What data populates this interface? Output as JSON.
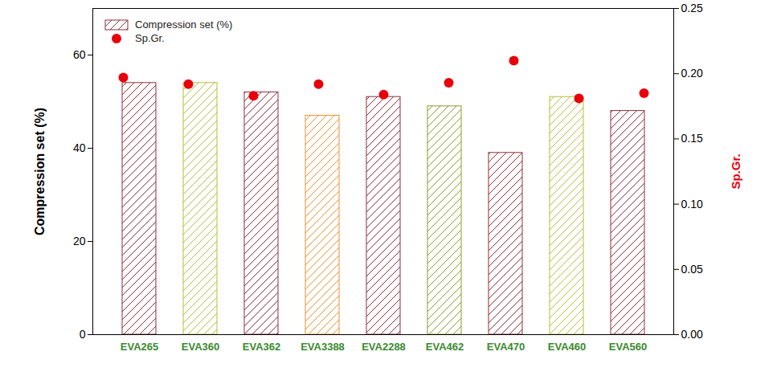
{
  "chart_data": {
    "type": "bar",
    "categories": [
      "EVA265",
      "EVA360",
      "EVA362",
      "EVA3388",
      "EVA2288",
      "EVA462",
      "EVA470",
      "EVA460",
      "EVA560"
    ],
    "series": [
      {
        "name": "Compression set (%)",
        "type": "bar",
        "colors": [
          "#8b2e3a",
          "#b5bd3a",
          "#8b2e3a",
          "#e8922e",
          "#8b2e3a",
          "#8c9a2e",
          "#8b2e3a",
          "#b5bd3a",
          "#8b2e3a"
        ],
        "values": [
          54,
          54,
          52,
          47,
          51,
          49,
          39,
          51,
          48
        ]
      },
      {
        "name": "Sp.Gr.",
        "type": "scatter",
        "axis": "y2",
        "marker": "circle",
        "color": "#e8000b",
        "values": [
          0.197,
          0.192,
          0.183,
          0.192,
          0.184,
          0.193,
          0.21,
          0.181,
          0.185
        ]
      }
    ],
    "y_label": "Compression set (%)",
    "y2_label": "Sp.Gr.",
    "ylim": [
      0,
      70
    ],
    "yticks": [
      0,
      20,
      40,
      60
    ],
    "y2lim": [
      0,
      0.25
    ],
    "y2ticks": [
      {
        "value": 0,
        "label": "0.00"
      },
      {
        "value": 0.05,
        "label": "0.05"
      },
      {
        "value": 0.1,
        "label": "0.10"
      },
      {
        "value": 0.15,
        "label": "0.15"
      },
      {
        "value": 0.2,
        "label": "0.20"
      },
      {
        "value": 0.25,
        "label": "0.25"
      }
    ],
    "grid": false,
    "legend": "upper left"
  }
}
